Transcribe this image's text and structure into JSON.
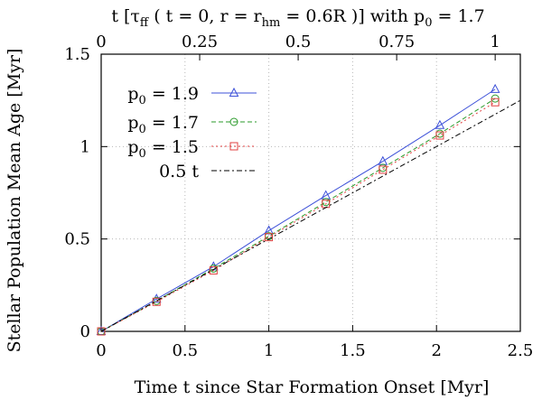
{
  "chart_data": {
    "type": "line",
    "title_top": "t [τ",
    "title_top_sub": "ff",
    "title_top_mid": " ( t = 0, r = r",
    "title_top_sub2": "hm",
    "title_top_end": " = 0.6R )] with p",
    "title_top_sub3": "0",
    "title_top_tail": " = 1.7",
    "xlabel": "Time t since Star Formation Onset [Myr]",
    "ylabel": "Stellar Population Mean Age [Myr]",
    "xlim": [
      0,
      2.5
    ],
    "ylim": [
      0,
      1.5
    ],
    "x_ticks": [
      "0",
      "0.5",
      "1",
      "1.5",
      "2",
      "2.5"
    ],
    "x_tick_values": [
      0,
      0.5,
      1,
      1.5,
      2,
      2.5
    ],
    "y_ticks": [
      "0",
      "0.5",
      "1",
      "1.5"
    ],
    "y_tick_values": [
      0,
      0.5,
      1,
      1.5
    ],
    "top_ticks": [
      "0",
      "0.25",
      "0.5",
      "0.75",
      "1"
    ],
    "top_tick_values": [
      0,
      0.25,
      0.5,
      0.75,
      1
    ],
    "top_axis_scale_myr": 2.35,
    "grid": true,
    "legend_position": "top-left",
    "series": [
      {
        "name_base": "p",
        "name_sub": "0",
        "name_tail": " = 1.9",
        "color": "#3c50d8",
        "dash": "solid",
        "marker": "triangle",
        "x": [
          0,
          0.33,
          0.67,
          1.0,
          1.34,
          1.68,
          2.02,
          2.35
        ],
        "y": [
          0,
          0.175,
          0.35,
          0.545,
          0.735,
          0.92,
          1.115,
          1.31
        ]
      },
      {
        "name_base": "p",
        "name_sub": "0",
        "name_tail": " = 1.7",
        "color": "#2a9a2a",
        "dash": "dashed",
        "marker": "circle",
        "x": [
          0,
          0.33,
          0.67,
          1.0,
          1.34,
          1.68,
          2.02,
          2.35
        ],
        "y": [
          0,
          0.165,
          0.34,
          0.515,
          0.7,
          0.885,
          1.07,
          1.26
        ]
      },
      {
        "name_base": "p",
        "name_sub": "0",
        "name_tail": " = 1.5",
        "color": "#e04040",
        "dash": "dotted",
        "marker": "square",
        "x": [
          0,
          0.33,
          0.67,
          1.0,
          1.34,
          1.68,
          2.02,
          2.35
        ],
        "y": [
          0,
          0.16,
          0.33,
          0.51,
          0.69,
          0.875,
          1.06,
          1.24
        ]
      },
      {
        "name_base": "0.5 t",
        "name_sub": "",
        "name_tail": "",
        "color": "#000000",
        "dash": "dashdot",
        "marker": "none",
        "x": [
          0,
          2.5
        ],
        "y": [
          0,
          1.25
        ]
      }
    ]
  }
}
